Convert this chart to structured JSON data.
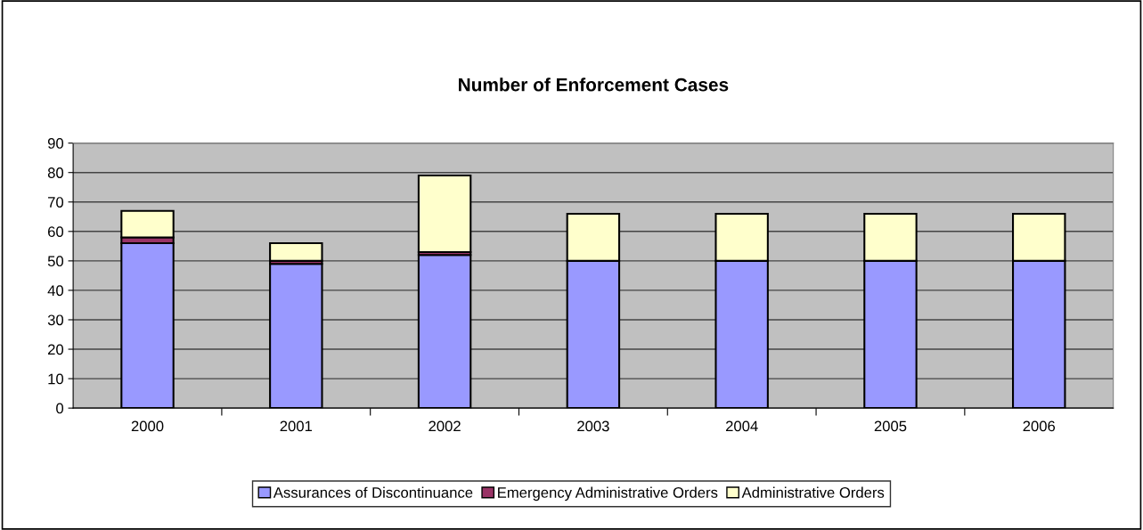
{
  "chart_data": {
    "type": "bar",
    "title": "Number of Enforcement Cases",
    "stacked": true,
    "categories": [
      "2000",
      "2001",
      "2002",
      "2003",
      "2004",
      "2005",
      "2006"
    ],
    "series": [
      {
        "name": "Assurances of Discontinuance",
        "color": "#9999ff",
        "values": [
          56,
          49,
          52,
          50,
          50,
          50,
          50
        ]
      },
      {
        "name": "Emergency Administrative Orders",
        "color": "#993366",
        "values": [
          2,
          1,
          1,
          0,
          0,
          0,
          0
        ]
      },
      {
        "name": "Administrative Orders",
        "color": "#ffffcc",
        "values": [
          9,
          6,
          26,
          16,
          16,
          16,
          16
        ]
      }
    ],
    "ylim": [
      0,
      90
    ],
    "yticks": [
      0,
      10,
      20,
      30,
      40,
      50,
      60,
      70,
      80,
      90
    ],
    "grid": "y",
    "legend": "bottom"
  }
}
